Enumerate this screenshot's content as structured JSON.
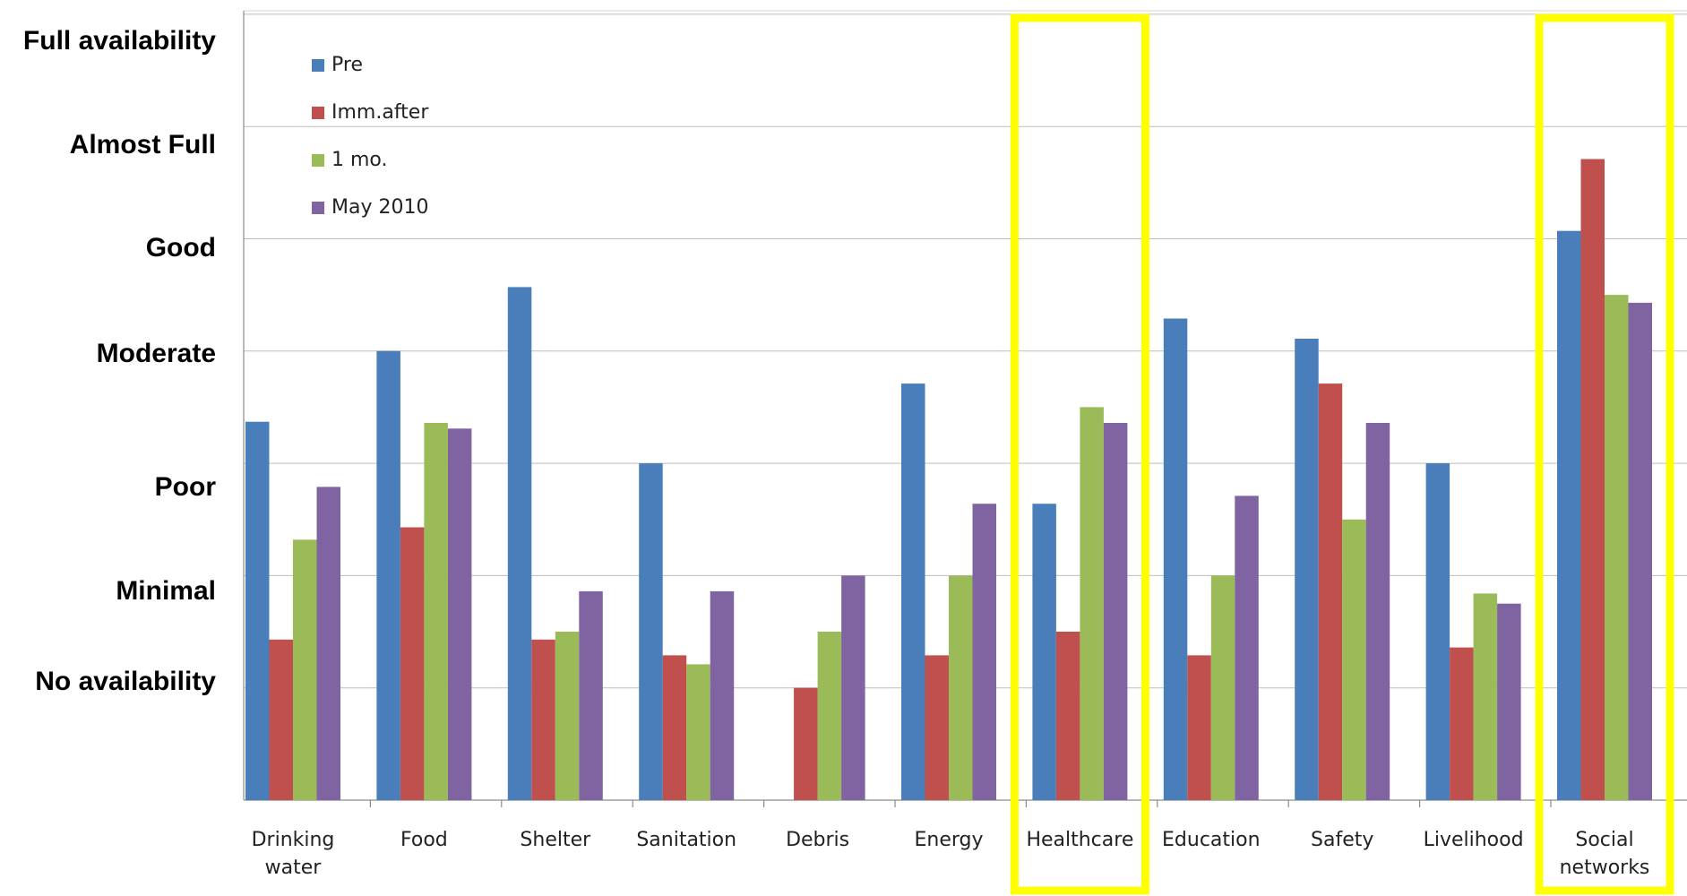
{
  "chart_data": {
    "type": "bar",
    "title": "",
    "xlabel": "",
    "ylabel": "",
    "ylim": [
      0,
      7
    ],
    "y_tick_labels": [
      "No availability",
      "Minimal",
      "Poor",
      "Moderate",
      "Good",
      "Almost Full",
      "Full availability"
    ],
    "grid": true,
    "legend_position": "top-left",
    "categories": [
      [
        "Drinking",
        "water"
      ],
      [
        "Food"
      ],
      [
        "Shelter"
      ],
      [
        "Sanitation"
      ],
      [
        "Debris"
      ],
      [
        "Energy"
      ],
      [
        "Healthcare"
      ],
      [
        "Education"
      ],
      [
        "Safety"
      ],
      [
        "Livelihood"
      ],
      [
        "Social",
        "networks"
      ]
    ],
    "series": [
      {
        "name": "Pre",
        "color": "#4a7ebb",
        "values": [
          3.37,
          4.0,
          4.57,
          3.0,
          0.0,
          3.71,
          2.64,
          4.29,
          4.11,
          3.0,
          5.07
        ]
      },
      {
        "name": "Imm.after",
        "color": "#c0504d",
        "values": [
          1.43,
          2.43,
          1.43,
          1.29,
          1.0,
          1.29,
          1.5,
          1.29,
          3.71,
          1.36,
          5.71
        ]
      },
      {
        "name": "1 mo.",
        "color": "#9bbb59",
        "values": [
          2.32,
          3.36,
          1.5,
          1.21,
          1.5,
          2.0,
          3.5,
          2.0,
          2.5,
          1.84,
          4.5
        ]
      },
      {
        "name": "May 2010",
        "color": "#8064a2",
        "values": [
          2.79,
          3.31,
          1.86,
          1.86,
          2.0,
          2.64,
          3.36,
          2.71,
          3.36,
          1.75,
          4.43
        ]
      }
    ],
    "highlighted_categories": [
      "Healthcare",
      "Social networks"
    ],
    "highlight_color": "#ffff00"
  }
}
